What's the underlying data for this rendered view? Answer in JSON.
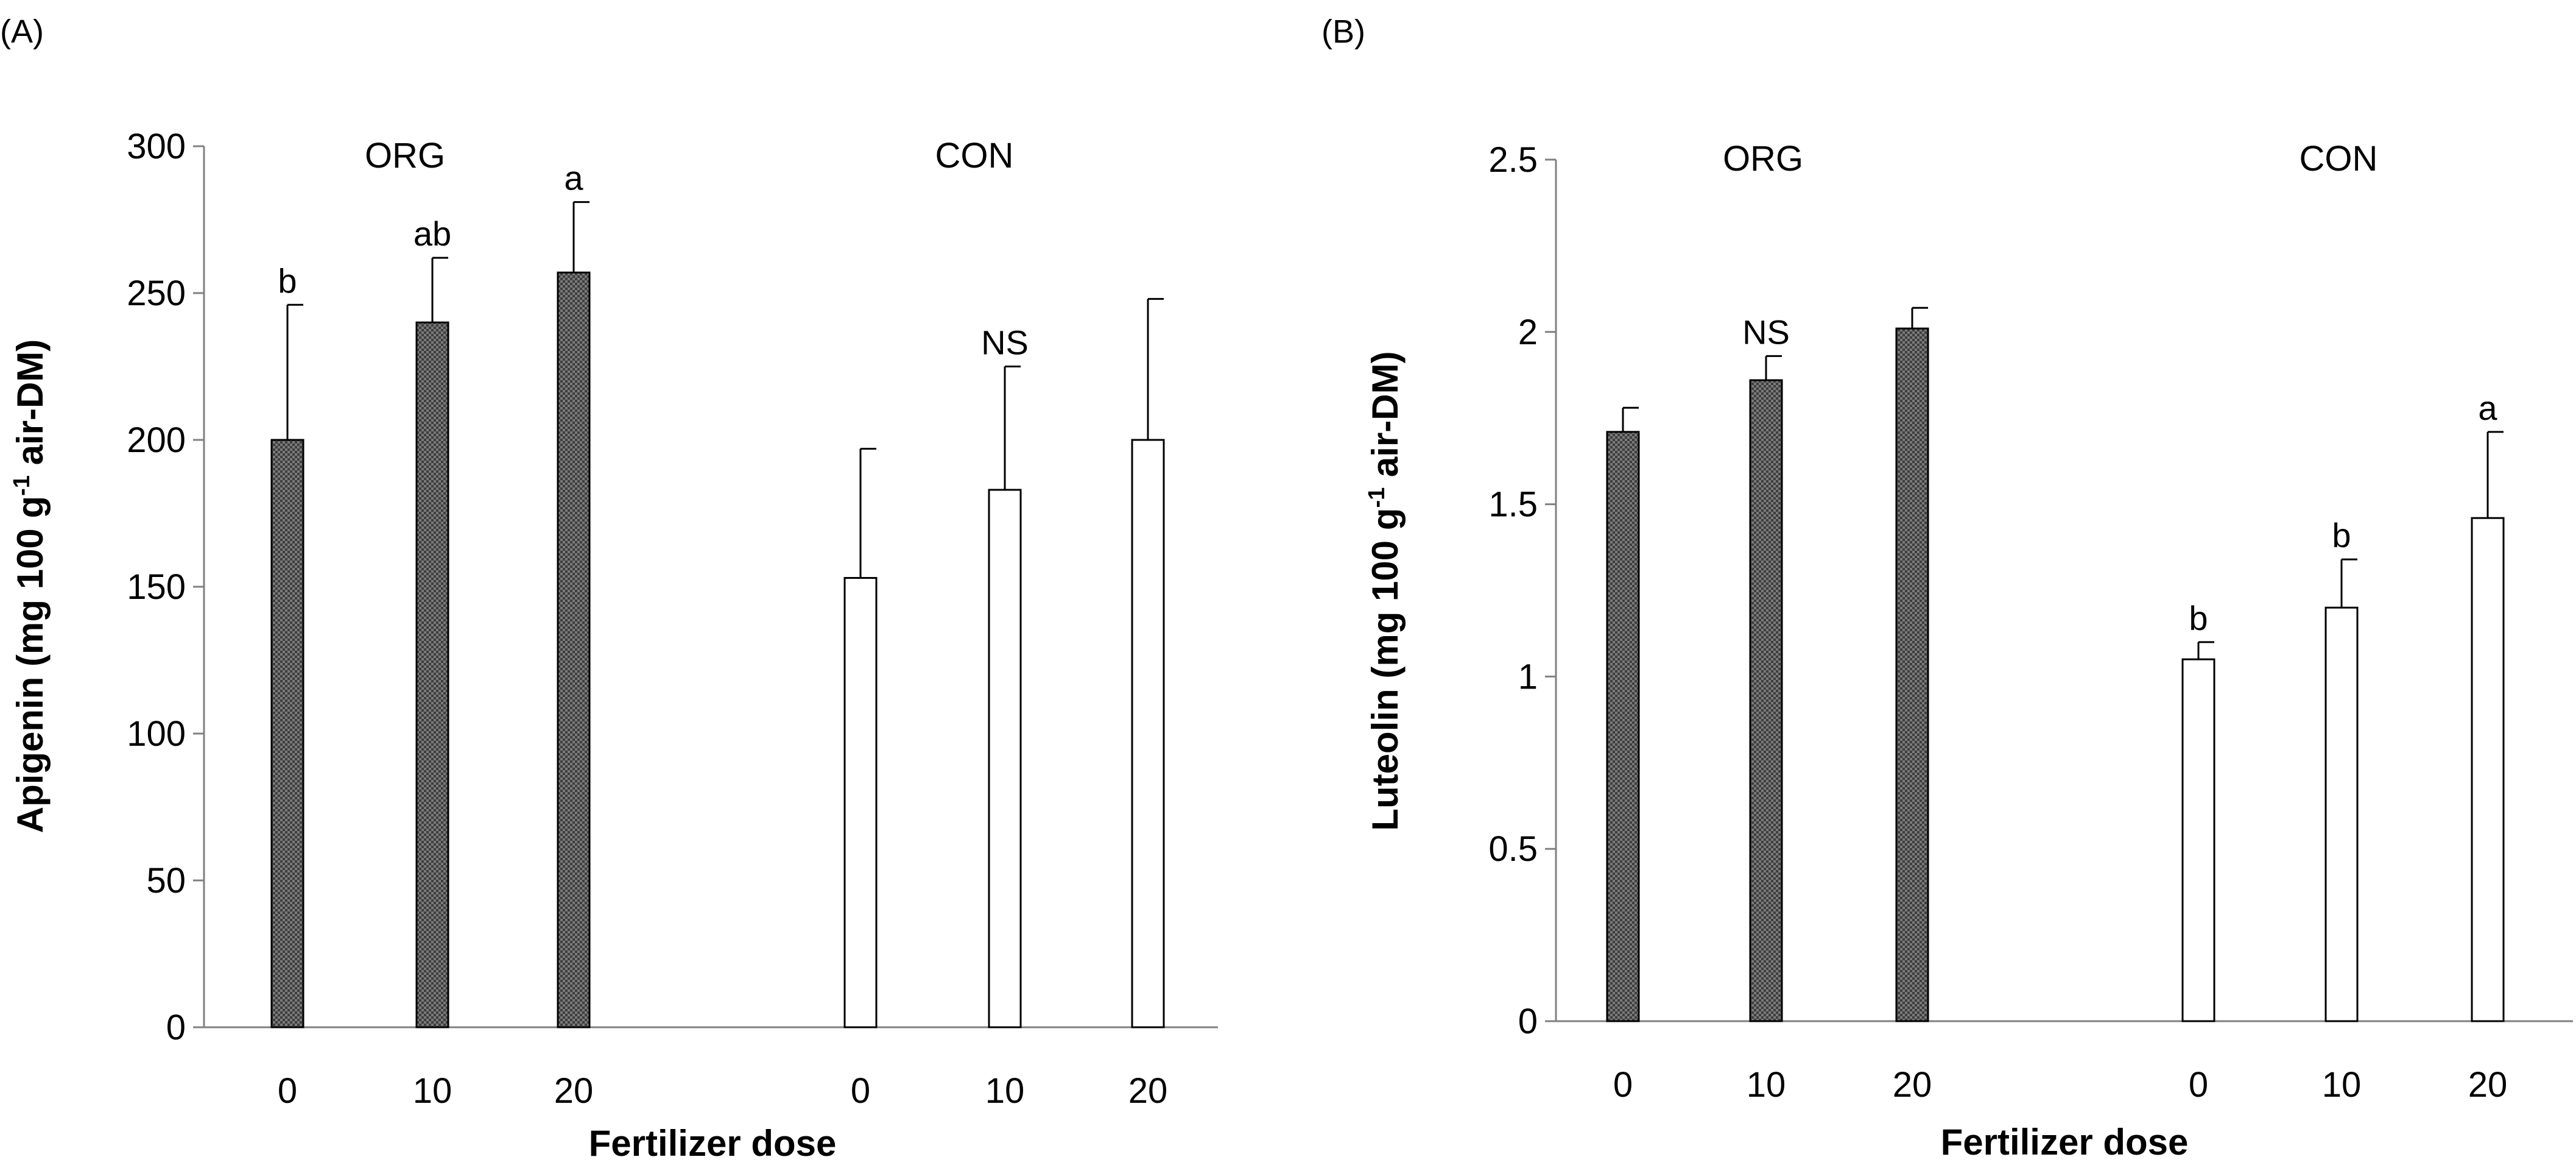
{
  "colors": {
    "org_bar_fill": "#6e6e6e",
    "con_bar_fill": "#ffffff",
    "axis": "#808080",
    "bar_stroke": "#000000"
  },
  "chart_data": [
    {
      "panel_label": "(A)",
      "type": "bar",
      "xlabel": "Fertilizer dose",
      "ylabel": {
        "main": "Apigenin (mg 100 g",
        "superscript": "-1",
        "end": " air-DM)"
      },
      "ylim": [
        0,
        300
      ],
      "yticks": [
        "0",
        "50",
        "100",
        "150",
        "200",
        "250",
        "300"
      ],
      "grid": false,
      "groups": [
        {
          "name": "ORG",
          "pattern": "dark stipple",
          "categories": [
            "0",
            "10",
            "20"
          ],
          "values": [
            200,
            240,
            257
          ],
          "errors": [
            46,
            22,
            24
          ],
          "annotations": [
            "b",
            "ab",
            "a"
          ]
        },
        {
          "name": "CON",
          "pattern": "white",
          "categories": [
            "0",
            "10",
            "20"
          ],
          "values": [
            153,
            183,
            200
          ],
          "errors": [
            44,
            42,
            48
          ],
          "annotations": [
            "",
            "NS",
            ""
          ]
        }
      ]
    },
    {
      "panel_label": "(B)",
      "type": "bar",
      "xlabel": "Fertilizer dose",
      "ylabel": {
        "main": "Luteolin (mg 100 g",
        "superscript": "-1",
        "end": " air-DM)"
      },
      "ylim": [
        0,
        2.5
      ],
      "yticks": [
        "0",
        "0.5",
        "1",
        "1.5",
        "2",
        "2.5"
      ],
      "grid": false,
      "groups": [
        {
          "name": "ORG",
          "pattern": "dark stipple",
          "categories": [
            "0",
            "10",
            "20"
          ],
          "values": [
            1.71,
            1.86,
            2.01
          ],
          "errors": [
            0.07,
            0.07,
            0.06
          ],
          "annotations": [
            "",
            "NS",
            ""
          ]
        },
        {
          "name": "CON",
          "pattern": "white",
          "categories": [
            "0",
            "10",
            "20"
          ],
          "values": [
            1.05,
            1.2,
            1.46
          ],
          "errors": [
            0.05,
            0.14,
            0.25
          ],
          "annotations": [
            "b",
            "b",
            "a"
          ]
        }
      ]
    }
  ]
}
